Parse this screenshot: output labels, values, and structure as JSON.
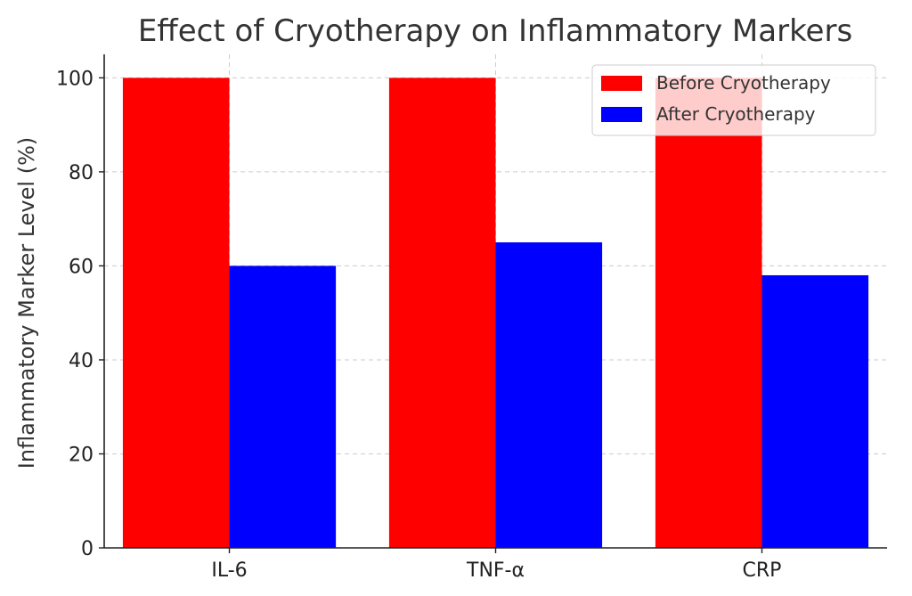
{
  "chart_data": {
    "type": "bar",
    "title": "Effect of Cryotherapy on Inflammatory Markers",
    "xlabel": "",
    "ylabel": "Inflammatory Marker Level (%)",
    "categories": [
      "IL-6",
      "TNF-α",
      "CRP"
    ],
    "series": [
      {
        "name": "Before Cryotherapy",
        "color": "#ff0000",
        "values": [
          100,
          100,
          100
        ]
      },
      {
        "name": "After Cryotherapy",
        "color": "#0000ff",
        "values": [
          60,
          65,
          58
        ]
      }
    ],
    "ylim": [
      0,
      105
    ],
    "yticks": [
      0,
      20,
      40,
      60,
      80,
      100
    ],
    "grid": true,
    "legend_position": "top-right"
  }
}
